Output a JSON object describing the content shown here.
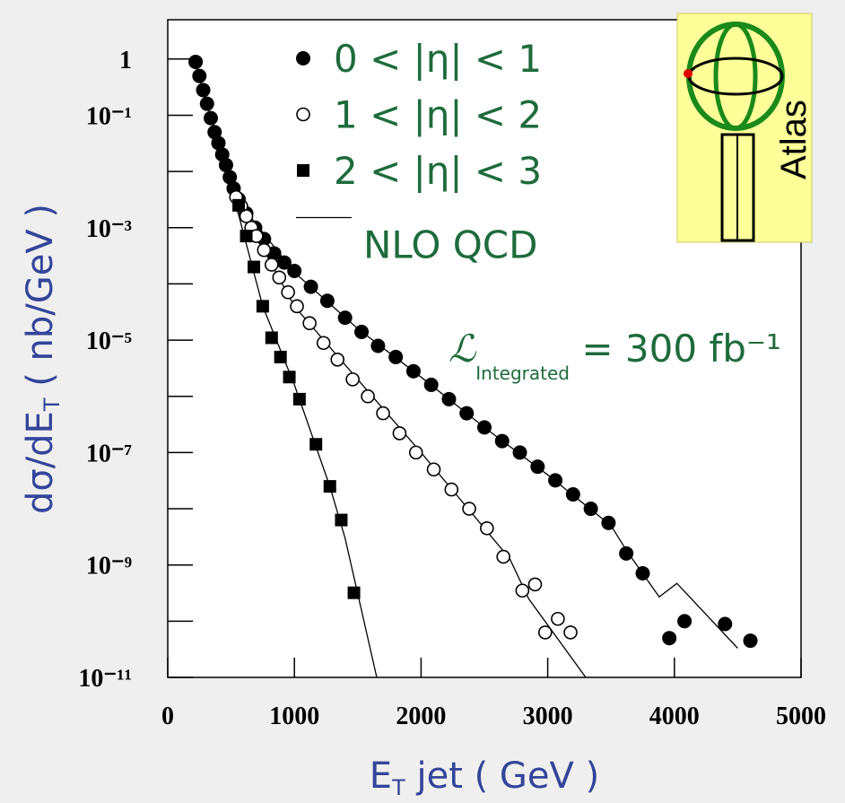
{
  "chart_data": {
    "type": "scatter",
    "log_y": true,
    "legend": "upper center",
    "xlabel": [
      "E",
      "T",
      " jet ( GeV )"
    ],
    "ylabel": [
      "dσ/dE",
      "T",
      " ( nb/GeV )"
    ],
    "xlim": [
      0,
      5000
    ],
    "xticks": [
      0,
      1000,
      2000,
      3000,
      4000,
      5000
    ],
    "ylim": [
      1e-11,
      5
    ],
    "yticks": [
      1,
      {
        "value": 0.1,
        "label": "10⁻¹"
      },
      {
        "value": 0.001,
        "label": "10⁻³"
      },
      {
        "value": 1e-05,
        "label": "10⁻⁵"
      },
      {
        "value": 1e-07,
        "label": "10⁻⁷"
      },
      {
        "value": 1e-09,
        "label": "10⁻⁹"
      },
      {
        "value": 1e-11,
        "label": "10⁻¹¹"
      }
    ],
    "yminorticks": [
      0.01,
      0.0001,
      1e-06,
      1e-08,
      1e-10
    ],
    "series": [
      {
        "name": "0 < |η| < 1",
        "marker": "filled-circle",
        "color": "#000000",
        "x": [
          220,
          250,
          280,
          310,
          340,
          370,
          400,
          430,
          460,
          490,
          520,
          560,
          620,
          690,
          760,
          840,
          920,
          1000,
          1130,
          1260,
          1400,
          1530,
          1660,
          1800,
          1940,
          2080,
          2220,
          2360,
          2500,
          2640,
          2780,
          2920,
          3060,
          3200,
          3340,
          3480,
          3620,
          3750,
          3960,
          4080,
          4400,
          4600
        ],
        "values": [
          0.89,
          0.5,
          0.28,
          0.16,
          0.089,
          0.05,
          0.032,
          0.02,
          0.013,
          0.0079,
          0.005,
          0.0032,
          0.0018,
          0.001,
          0.00063,
          0.00035,
          0.00024,
          0.00017,
          8.9e-05,
          5e-05,
          2.5e-05,
          1.4e-05,
          7.9e-06,
          5e-06,
          2.8e-06,
          1.6e-06,
          8.9e-07,
          5e-07,
          2.8e-07,
          1.6e-07,
          1e-07,
          5.6e-08,
          3.2e-08,
          1.8e-08,
          1e-08,
          5.6e-09,
          1.6e-09,
          7.1e-10,
          5e-11,
          1e-10,
          8.9e-11,
          4.5e-11
        ]
      },
      {
        "name": "1 < |η| < 2",
        "marker": "open-circle",
        "color": "#000000",
        "x": [
          540,
          580,
          620,
          660,
          700,
          760,
          820,
          880,
          950,
          1020,
          1120,
          1230,
          1340,
          1460,
          1580,
          1700,
          1830,
          1960,
          2100,
          2240,
          2380,
          2520,
          2650,
          2800,
          2900,
          2980,
          3080,
          3180
        ],
        "values": [
          0.0035,
          0.0024,
          0.0016,
          0.001,
          0.00071,
          0.0004,
          0.00022,
          0.00013,
          7.1e-05,
          4e-05,
          2e-05,
          8.9e-06,
          4.5e-06,
          2e-06,
          1e-06,
          5e-07,
          2.2e-07,
          1e-07,
          5e-08,
          2.2e-08,
          1e-08,
          4.5e-09,
          1.4e-09,
          3.5e-10,
          4.5e-10,
          6.3e-11,
          1.1e-10,
          6.3e-11
        ]
      },
      {
        "name": "2 < |η| < 3",
        "marker": "square",
        "color": "#000000",
        "x": [
          560,
          620,
          680,
          750,
          820,
          890,
          960,
          1040,
          1170,
          1280,
          1370,
          1470
        ],
        "values": [
          0.0025,
          0.00071,
          0.0002,
          4e-05,
          1.1e-05,
          5e-06,
          2.2e-06,
          8.9e-07,
          1.4e-07,
          2.5e-08,
          6.3e-09,
          3.2e-10
        ]
      },
      {
        "name": "NLO QCD",
        "style": "line",
        "color": "#000000",
        "x": [
          200,
          400,
          600,
          1000,
          1500,
          2000,
          2500,
          3000,
          3500,
          3630,
          3880,
          4020,
          4500,
          null,
          540,
          700,
          1000,
          1500,
          2000,
          2500,
          2700,
          2850,
          3300,
          null,
          540,
          750,
          1000,
          1280,
          1400,
          1650
        ],
        "values": [
          1.1,
          0.032,
          0.0022,
          0.00016,
          1.6e-05,
          2.2e-06,
          2.8e-07,
          4e-08,
          5e-09,
          1.7e-09,
          2.7e-10,
          4.7e-10,
          3.3e-11,
          null,
          0.0035,
          0.0007,
          4e-05,
          2e-06,
          1e-07,
          4.5e-09,
          1.3e-09,
          2.5e-10,
          1e-11,
          null,
          0.0025,
          4e-05,
          1.6e-06,
          2.5e-08,
          3e-09,
          1e-11
        ]
      }
    ],
    "annotation": {
      "symbol": "ℒ",
      "subscript": "Integrated",
      "text": " = 300 fb⁻¹"
    },
    "logo": {
      "text": "Atlas"
    }
  }
}
